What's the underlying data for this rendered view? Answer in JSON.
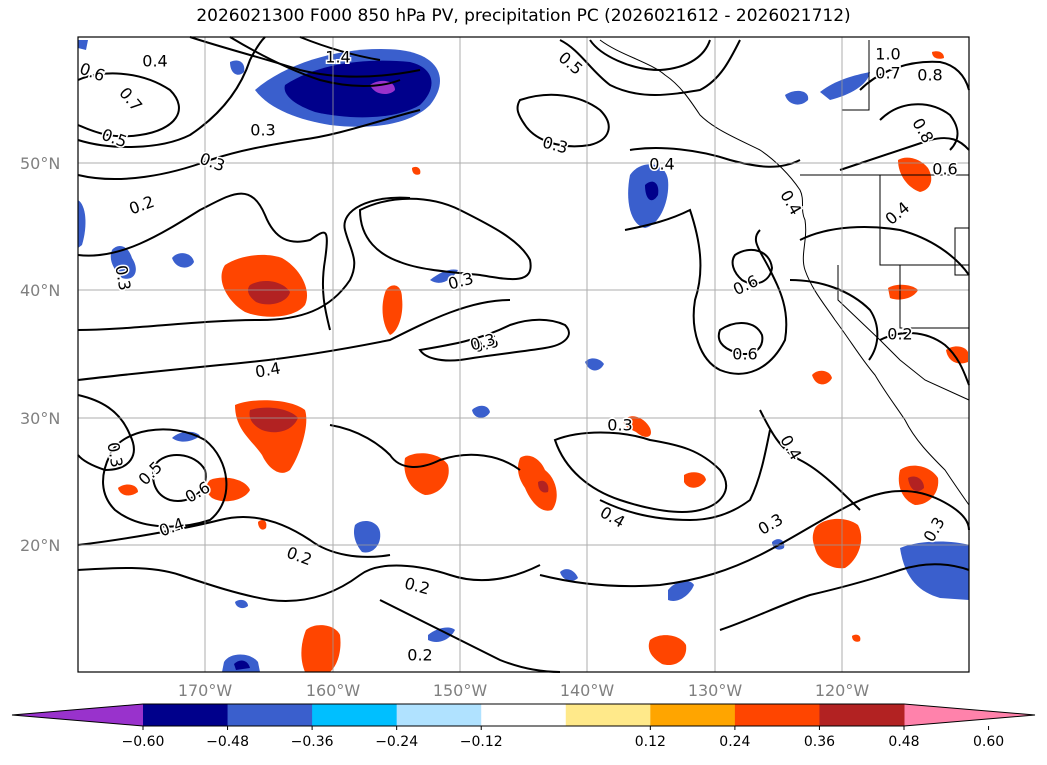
{
  "title": "2026021300 F000 850 hPa PV, precipitation PC (2026021612 - 2026021712)",
  "lat_labels": [
    "50°N",
    "40°N",
    "30°N",
    "20°N"
  ],
  "lon_labels": [
    "170°W",
    "160°W",
    "150°W",
    "140°W",
    "130°W",
    "120°W"
  ],
  "contour_labels": [
    "0.4",
    "1.4",
    "0.6",
    "0.7",
    "0.5",
    "0.3",
    "0.3",
    "0.2",
    "0.3",
    "0.3",
    "0.3",
    "0.4",
    "0.6",
    "0.6",
    "0.4",
    "0.3",
    "0.5",
    "0.6",
    "0.4",
    "0.2",
    "0.2",
    "0.3",
    "0.4",
    "0.4",
    "0.3",
    "0.3",
    "0.2",
    "1.0",
    "0.7",
    "0.8",
    "0.8",
    "0.6",
    "0.4",
    "0.2",
    "0.6",
    "0.5",
    "0.3",
    "0.4"
  ],
  "colorbar": {
    "ticks": [
      "−0.60",
      "−0.48",
      "−0.36",
      "−0.24",
      "−0.12",
      "0.12",
      "0.24",
      "0.36",
      "0.48",
      "0.60"
    ],
    "colors": [
      "#9932cc",
      "#00008b",
      "#3a5fcd",
      "#00bfff",
      "#b0e2ff",
      "#ffffff",
      "#ffe98a",
      "#ffa500",
      "#ff4500",
      "#b22222",
      "#ff82ab"
    ]
  }
}
